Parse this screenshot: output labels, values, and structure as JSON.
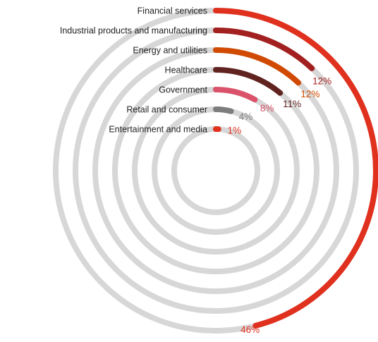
{
  "chart_data": {
    "type": "radial-bar",
    "title": "",
    "value_unit": "%",
    "full_circle_value": 100,
    "series": [
      {
        "category": "Financial services",
        "value": 46,
        "label": "46%",
        "color": "#e0301e",
        "label_color": "#e0301e",
        "value_color": "#e0301e"
      },
      {
        "category": "Industrial products and manufacturing",
        "value": 12,
        "label": "12%",
        "color": "#a32020",
        "label_color": "#222222",
        "value_color": "#a32020"
      },
      {
        "category": "Energy and utilities",
        "value": 12,
        "label": "12%",
        "color": "#d04a02",
        "label_color": "#222222",
        "value_color": "#d04a02"
      },
      {
        "category": "Healthcare",
        "value": 11,
        "label": "11%",
        "color": "#602320",
        "label_color": "#222222",
        "value_color": "#602320"
      },
      {
        "category": "Government",
        "value": 8,
        "label": "8%",
        "color": "#db536a",
        "label_color": "#222222",
        "value_color": "#db536a"
      },
      {
        "category": "Retail and consumer",
        "value": 4,
        "label": "4%",
        "color": "#7d7d7d",
        "label_color": "#222222",
        "value_color": "#7d7d7d"
      },
      {
        "category": "Entertainment and media",
        "value": 1,
        "label": "1%",
        "color": "#e0301e",
        "label_color": "#222222",
        "value_color": "#e0301e"
      }
    ],
    "track_color": "#d7d7d7"
  }
}
